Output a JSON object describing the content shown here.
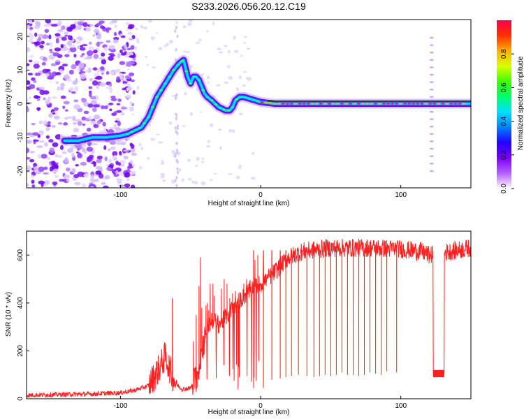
{
  "chart_data": [
    {
      "type": "heatmap",
      "title": "S233.2026.056.20.12.C19",
      "xlabel": "Height of straight line (km)",
      "ylabel": "Frequency (Hz)",
      "xlim": [
        -167,
        150
      ],
      "ylim": [
        -25,
        25
      ],
      "xticks": [
        -100,
        0,
        100
      ],
      "xtick_labels": [
        "-100",
        "0",
        "100"
      ],
      "yticks": [
        -20,
        -10,
        0,
        10,
        20
      ],
      "ytick_labels": [
        "-20",
        "-10",
        "0",
        "10",
        "20"
      ],
      "ridge": {
        "x": [
          -140,
          -130,
          -120,
          -110,
          -100,
          -95,
          -90,
          -85,
          -80,
          -77,
          -74,
          -71,
          -68,
          -65,
          -62,
          -58,
          -55,
          -52,
          -50,
          -48,
          -46,
          -44,
          -42,
          -40,
          -38,
          -35,
          -30,
          -25,
          -22,
          -20,
          -18,
          -15,
          -12,
          -8,
          -4,
          0,
          10,
          30,
          60,
          90,
          118,
          150
        ],
        "y": [
          -11,
          -11,
          -10,
          -10,
          -9.5,
          -9,
          -8,
          -7,
          -4,
          -1,
          2,
          4,
          6,
          8,
          10,
          12,
          13,
          8,
          6,
          8,
          8,
          7,
          5,
          3,
          2,
          1,
          -1,
          -2,
          -2,
          -1,
          1,
          2,
          2,
          1.5,
          1,
          0.5,
          0,
          0,
          0,
          0,
          0,
          0
        ]
      },
      "noise_region_x": [
        -167,
        -100
      ],
      "line_spike_x": 122,
      "colorbar": {
        "label": "Normalized spectral amplitude",
        "range": [
          0,
          1
        ],
        "ticks": [
          0.0,
          0.2,
          0.4,
          0.6,
          0.8
        ],
        "tick_labels": [
          "0.0",
          "0.2",
          "0.4",
          "0.6",
          "0.8"
        ],
        "colors": [
          "#ffffff",
          "#b560ff",
          "#7a00ff",
          "#2200ff",
          "#0080ff",
          "#00e0ff",
          "#00ff70",
          "#40ff00",
          "#d8ff00",
          "#ffb000",
          "#ff3000",
          "#ff0050"
        ]
      }
    },
    {
      "type": "line",
      "xlabel": "Height of straight line (km)",
      "ylabel": "SNR (10 * v/v)",
      "xlim": [
        -167,
        150
      ],
      "ylim": [
        0,
        700
      ],
      "xticks": [
        -100,
        0,
        100
      ],
      "xtick_labels": [
        "-100",
        "0",
        "100"
      ],
      "yticks": [
        0,
        200,
        400,
        600
      ],
      "ytick_labels": [
        "0",
        "200",
        "400",
        "600"
      ],
      "series": [
        {
          "name": "SNR",
          "color": "#ff2020",
          "envelope_x": [
            -167,
            -120,
            -100,
            -90,
            -80,
            -72,
            -68,
            -64,
            -60,
            -56,
            -50,
            -45,
            -42,
            -38,
            -34,
            -30,
            -25,
            -20,
            -15,
            -10,
            -5,
            0,
            5,
            10,
            15,
            20,
            30,
            50,
            80,
            100,
            115,
            120,
            130,
            150
          ],
          "envelope_y": [
            15,
            20,
            25,
            35,
            55,
            130,
            180,
            110,
            60,
            40,
            45,
            100,
            200,
            300,
            330,
            310,
            340,
            380,
            410,
            440,
            470,
            480,
            500,
            530,
            560,
            590,
            615,
            630,
            630,
            625,
            615,
            600,
            610,
            630
          ],
          "spike_x": [
            -63,
            -48,
            -46,
            -44,
            -43,
            -42,
            -40,
            -39,
            -38,
            -37,
            -36,
            -35,
            -34,
            -33,
            -30,
            -28,
            -26,
            -24,
            -22,
            -20,
            -18,
            -15,
            -12,
            -10,
            -8,
            -4,
            -2
          ],
          "spike_y": [
            420,
            240,
            350,
            470,
            590,
            380,
            300,
            390,
            400,
            370,
            480,
            360,
            480,
            430,
            300,
            460,
            500,
            480,
            420,
            440,
            450,
            420,
            480,
            500,
            480,
            580,
            600
          ],
          "dip_x": [
            -5,
            2,
            8,
            14,
            18,
            22,
            27,
            33,
            38,
            42,
            46,
            50,
            54,
            58,
            62,
            66,
            70,
            74,
            78,
            82,
            86,
            90,
            97
          ],
          "dip_y": [
            45,
            75,
            80,
            85,
            90,
            95,
            100,
            95,
            90,
            95,
            100,
            95,
            100,
            110,
            100,
            100,
            95,
            100,
            110,
            105,
            100,
            115,
            110
          ],
          "band_x": [
            123,
            131
          ],
          "band_y": [
            90,
            120
          ]
        }
      ]
    }
  ]
}
